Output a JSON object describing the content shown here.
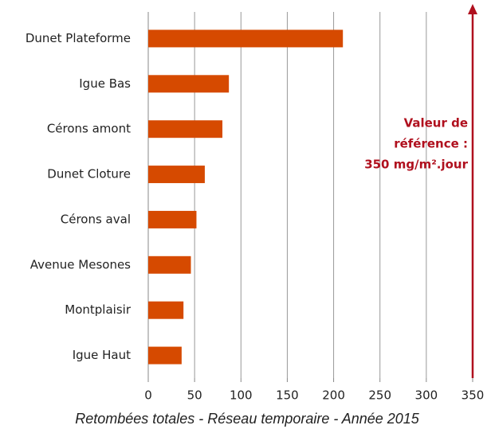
{
  "chart_data": {
    "type": "barh",
    "categories": [
      "Dunet Plateforme",
      "Igue Bas",
      "Cérons amont",
      "Dunet Cloture",
      "Cérons aval",
      "Avenue Mesones",
      "Montplaisir",
      "Igue Haut"
    ],
    "values": [
      210,
      87,
      80,
      61,
      52,
      46,
      38,
      36
    ],
    "color": "#d64a00",
    "xlim": [
      0,
      350
    ],
    "xticks": [
      0,
      50,
      100,
      150,
      200,
      250,
      300,
      350
    ],
    "grid": true,
    "x_label": "Retombées totales - Réseau temporaire - Année 2015",
    "annotation": [
      "Valeur de",
      "référence :",
      "350 mg/m².jour"
    ],
    "annotation_color": "#b0101e"
  }
}
